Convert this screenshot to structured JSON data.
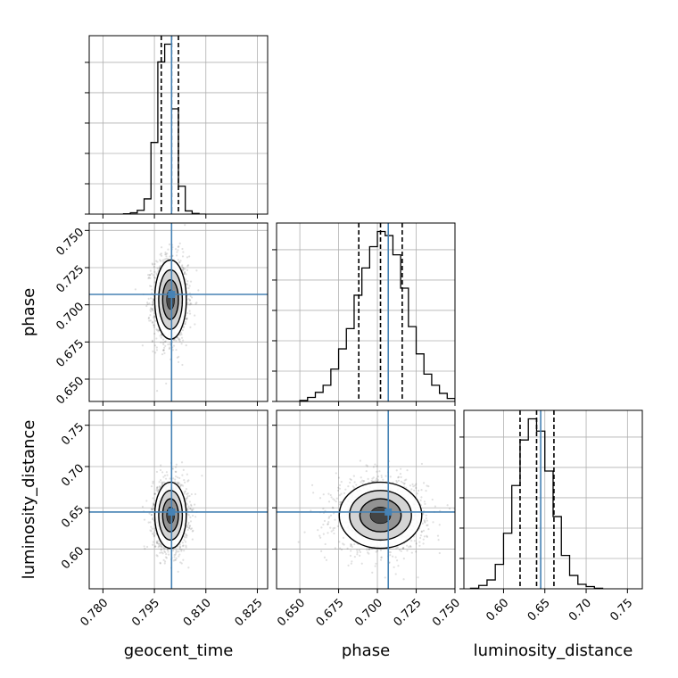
{
  "chart_data": {
    "type": "corner",
    "parameters": [
      "geocent_time",
      "phase",
      "luminosity_distance"
    ],
    "truths": {
      "geocent_time": 0.8,
      "phase": 0.707,
      "luminosity_distance": 0.645
    },
    "quantiles": {
      "geocent_time": [
        0.797,
        0.8,
        0.802
      ],
      "phase": [
        0.688,
        0.702,
        0.716
      ],
      "luminosity_distance": [
        0.62,
        0.64,
        0.661
      ]
    },
    "colors": {
      "truth": "#4682b4",
      "histogram": "#000000",
      "grid": "#b0b0b0",
      "contour": "#000000"
    },
    "grid": true,
    "panels": [
      {
        "id": "hist-geocent_time",
        "kind": "hist",
        "param": "geocent_time",
        "xlim": [
          0.776,
          0.828
        ],
        "bin_edges": [
          0.786,
          0.788,
          0.79,
          0.792,
          0.794,
          0.796,
          0.798,
          0.8,
          0.802,
          0.804,
          0.806,
          0.808,
          0.81
        ],
        "counts": [
          0.5,
          2,
          6,
          24,
          113,
          240,
          268,
          166,
          44,
          5,
          1,
          0
        ]
      },
      {
        "id": "hist-phase",
        "kind": "hist",
        "param": "phase",
        "xlim": [
          0.635,
          0.75
        ],
        "bin_edges": [
          0.65,
          0.655,
          0.66,
          0.665,
          0.67,
          0.675,
          0.68,
          0.685,
          0.69,
          0.695,
          0.7,
          0.705,
          0.71,
          0.715,
          0.72,
          0.725,
          0.73,
          0.735,
          0.74,
          0.745,
          0.75
        ],
        "counts": [
          1,
          4,
          9,
          16,
          32,
          52,
          72,
          105,
          132,
          153,
          168,
          164,
          145,
          112,
          74,
          47,
          27,
          16,
          8,
          3
        ]
      },
      {
        "id": "hist-luminosity_distance",
        "kind": "hist",
        "param": "luminosity_distance",
        "xlim": [
          0.552,
          0.768
        ],
        "bin_edges": [
          0.56,
          0.57,
          0.58,
          0.59,
          0.6,
          0.61,
          0.62,
          0.63,
          0.64,
          0.65,
          0.66,
          0.67,
          0.68,
          0.69,
          0.7,
          0.71,
          0.72
        ],
        "counts": [
          0.5,
          3,
          8,
          22,
          50,
          93,
          134,
          153,
          142,
          106,
          65,
          30,
          12,
          4,
          2,
          0.5
        ]
      },
      {
        "id": "scatter-geocent_time-phase",
        "kind": "2d",
        "xparam": "geocent_time",
        "yparam": "phase",
        "xlim": [
          0.776,
          0.828
        ],
        "ylim": [
          0.635,
          0.755
        ],
        "center": [
          0.7997,
          0.7035
        ],
        "sigma": [
          0.0023,
          0.0133
        ]
      },
      {
        "id": "scatter-geocent_time-luminosity_distance",
        "kind": "2d",
        "xparam": "geocent_time",
        "yparam": "luminosity_distance",
        "xlim": [
          0.776,
          0.828
        ],
        "ylim": [
          0.552,
          0.768
        ],
        "center": [
          0.7997,
          0.641
        ],
        "sigma": [
          0.0023,
          0.02
        ]
      },
      {
        "id": "scatter-phase-luminosity_distance",
        "kind": "2d",
        "xparam": "phase",
        "yparam": "luminosity_distance",
        "xlim": [
          0.635,
          0.75
        ],
        "ylim": [
          0.552,
          0.768
        ],
        "center": [
          0.702,
          0.641
        ],
        "sigma": [
          0.0133,
          0.02
        ]
      }
    ],
    "ticks": {
      "geocent_time": {
        "values": [
          0.78,
          0.795,
          0.81,
          0.825
        ],
        "labels": [
          "0.780",
          "0.795",
          "0.810",
          "0.825"
        ]
      },
      "phase_x": {
        "values": [
          0.65,
          0.675,
          0.7,
          0.725,
          0.75
        ],
        "labels": [
          "0.650",
          "0.675",
          "0.700",
          "0.725",
          "0.750"
        ]
      },
      "phase_y": {
        "values": [
          0.65,
          0.675,
          0.7,
          0.725,
          0.75
        ],
        "labels": [
          "0.650",
          "0.675",
          "0.700",
          "0.725",
          "0.750"
        ]
      },
      "luminosity_distance_x": {
        "values": [
          0.6,
          0.65,
          0.7,
          0.75
        ],
        "labels": [
          "0.60",
          "0.65",
          "0.70",
          "0.75"
        ]
      },
      "luminosity_distance_y": {
        "values": [
          0.6,
          0.65,
          0.7,
          0.75
        ],
        "labels": [
          "0.60",
          "0.65",
          "0.70",
          "0.75"
        ]
      }
    },
    "axis_labels": {
      "x": [
        "geocent_time",
        "phase",
        "luminosity_distance"
      ],
      "y": [
        "phase",
        "luminosity_distance"
      ]
    }
  }
}
